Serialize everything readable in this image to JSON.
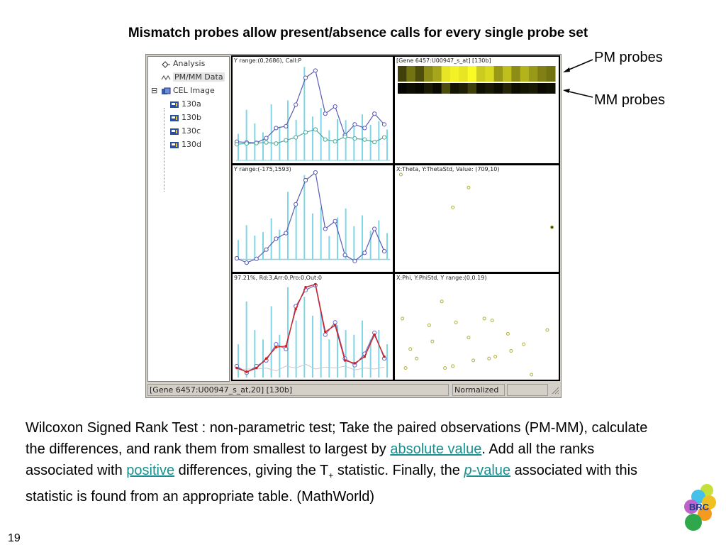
{
  "slide": {
    "title": "Mismatch probes allow present/absence calls for every single probe set",
    "number": "19"
  },
  "tree": {
    "items": [
      {
        "label": "Analysis",
        "icon": "analysis-icon"
      },
      {
        "label": "PM/MM Data",
        "icon": "wave-icon",
        "selected": true
      },
      {
        "label": "CEL Image",
        "icon": "cel-image-icon",
        "expand": "⊟"
      },
      {
        "label": "130a",
        "icon": "chip-icon"
      },
      {
        "label": "130b",
        "icon": "chip-icon"
      },
      {
        "label": "130c",
        "icon": "chip-icon"
      },
      {
        "label": "130d",
        "icon": "chip-icon"
      }
    ]
  },
  "panels": {
    "pmmm_label": "Y range:(0,2686), Call:P",
    "heatmap_label": "[Gene 6457:U00947_s_at] [130b]",
    "diff_label": "Y range:(-175,1593)",
    "theta_label": "X:Theta, Y:ThetaStd, Value: (709,10)",
    "pct_label": "97.21%, Rd:3,Arr:0,Pro:0,Out:0",
    "phi_label": "X:Phi, Y:PhiStd, Y range:(0,0.19)"
  },
  "status": {
    "text": "[Gene 6457:U00947_s_at,20] [130b]",
    "mode": "Normalized"
  },
  "annotations": {
    "pm": "PM probes",
    "mm": "MM probes"
  },
  "body": {
    "p1": "Wilcoxon Signed Rank Test : non-parametric test; Take the paired observations (PM-MM), calculate the differences, and rank them from smallest to largest by ",
    "link_absolute": "absolute value",
    "p2": ". Add all the ranks associated with ",
    "link_positive": "positive",
    "p3": " differences, giving the T",
    "sub_plus": "+",
    "p4": " statistic. Finally, the ",
    "link_p": "p",
    "link_value": "-value",
    "p5": " associated with this statistic is found from an appropriate table. (MathWorld)"
  },
  "logo": {
    "text": "BRC"
  },
  "colors": {
    "pm_line": "#5a5ab8",
    "mm_line": "#4aa89a",
    "bars": "#7fd6e6",
    "red_line": "#d02020",
    "scatter": "#b0b040",
    "link": "#1a8f8f"
  },
  "chart_data": [
    {
      "type": "line",
      "name": "pm-mm-intensity",
      "title": "Y range:(0,2686), Call:P",
      "x": [
        1,
        2,
        3,
        4,
        5,
        6,
        7,
        8,
        9,
        10,
        11,
        12,
        13,
        14,
        15,
        16
      ],
      "ylim": [
        0,
        2686
      ],
      "series": [
        {
          "values": [
            520,
            500,
            490,
            620,
            900,
            950,
            1550,
            2300,
            2500,
            1300,
            1500,
            700,
            1000,
            900,
            1300,
            1000
          ]
        },
        {
          "values": [
            450,
            470,
            480,
            500,
            470,
            560,
            640,
            780,
            860,
            580,
            530,
            660,
            610,
            580,
            510,
            640
          ]
        }
      ],
      "bars": [
        740,
        1410,
        1030,
        780,
        1560,
        940,
        1670,
        1130,
        2600,
        1220,
        1460,
        840,
        1150,
        1120,
        1060,
        1280,
        990,
        1090,
        860
      ]
    },
    {
      "type": "heatmap",
      "name": "probe-intensity-heatmap",
      "title": "[Gene 6457:U00947_s_at] [130b]",
      "rows": [
        "PM probes",
        "MM probes"
      ],
      "values": [
        [
          0.25,
          0.45,
          0.3,
          0.55,
          0.65,
          0.9,
          0.95,
          0.9,
          0.98,
          0.8,
          0.85,
          0.6,
          0.75,
          0.55,
          0.7,
          0.6,
          0.5,
          0.45
        ],
        [
          0.02,
          0.05,
          0.03,
          0.1,
          0.04,
          0.3,
          0.08,
          0.12,
          0.25,
          0.06,
          0.1,
          0.05,
          0.15,
          0.05,
          0.08,
          0.1,
          0.04,
          0.06
        ]
      ]
    },
    {
      "type": "line",
      "name": "pm-minus-mm",
      "title": "Y range:(-175,1593)",
      "x": [
        1,
        2,
        3,
        4,
        5,
        6,
        7,
        8,
        9,
        10,
        11,
        12,
        13,
        14,
        15,
        16
      ],
      "ylim": [
        -175,
        1593
      ],
      "series": [
        {
          "values": [
            20,
            -60,
            10,
            180,
            380,
            480,
            1010,
            1450,
            1593,
            560,
            700,
            80,
            -30,
            120,
            560,
            150
          ]
        }
      ],
      "bars": [
        220,
        520,
        310,
        380,
        660,
        430,
        1200,
        920,
        1540,
        760,
        880,
        300,
        680,
        860,
        500,
        720,
        410,
        620,
        360
      ]
    },
    {
      "type": "scatter",
      "name": "theta-thetastd",
      "title": "X:Theta, Y:ThetaStd, Value: (709,10)",
      "points": [
        [
          0.02,
          0.95
        ],
        [
          0.45,
          0.82
        ],
        [
          0.35,
          0.62
        ],
        [
          0.98,
          0.42
        ]
      ]
    },
    {
      "type": "line",
      "name": "fitted-model",
      "title": "97.21%, Rd:3,Arr:0,Pro:0,Out:0",
      "x": [
        1,
        2,
        3,
        4,
        5,
        6,
        7,
        8,
        9,
        10,
        11,
        12,
        13,
        14,
        15,
        16
      ],
      "series": [
        {
          "values": [
            0.1,
            0.06,
            0.1,
            0.2,
            0.32,
            0.33,
            0.72,
            0.95,
            0.98,
            0.48,
            0.55,
            0.18,
            0.15,
            0.22,
            0.45,
            0.22
          ]
        },
        {
          "values": [
            0.12,
            0.05,
            0.12,
            0.18,
            0.35,
            0.3,
            0.75,
            0.92,
            0.97,
            0.45,
            0.58,
            0.2,
            0.13,
            0.25,
            0.47,
            0.2
          ]
        },
        {
          "values": [
            0.08,
            0.09,
            0.09,
            0.1,
            0.07,
            0.12,
            0.1,
            0.14,
            0.09,
            0.11,
            0.1,
            0.12,
            0.08,
            0.1,
            0.09,
            0.11
          ]
        }
      ],
      "bars": [
        0.35,
        0.8,
        0.5,
        0.4,
        0.75,
        0.45,
        0.95,
        0.6,
        0.85,
        0.65,
        0.7,
        0.4,
        0.55,
        0.5,
        0.45,
        0.6,
        0.4,
        0.5,
        0.35
      ]
    },
    {
      "type": "scatter",
      "name": "phi-phistd",
      "title": "X:Phi, Y:PhiStd, Y range:(0,0.19)",
      "points": [
        [
          0.03,
          0.62
        ],
        [
          0.2,
          0.55
        ],
        [
          0.28,
          0.8
        ],
        [
          0.08,
          0.3
        ],
        [
          0.22,
          0.38
        ],
        [
          0.37,
          0.58
        ],
        [
          0.45,
          0.42
        ],
        [
          0.55,
          0.62
        ],
        [
          0.6,
          0.6
        ],
        [
          0.62,
          0.22
        ],
        [
          0.72,
          0.28
        ],
        [
          0.7,
          0.46
        ],
        [
          0.05,
          0.1
        ],
        [
          0.12,
          0.2
        ],
        [
          0.3,
          0.1
        ],
        [
          0.35,
          0.12
        ],
        [
          0.48,
          0.18
        ],
        [
          0.58,
          0.2
        ],
        [
          0.8,
          0.35
        ],
        [
          0.85,
          0.03
        ],
        [
          0.95,
          0.5
        ]
      ]
    }
  ]
}
